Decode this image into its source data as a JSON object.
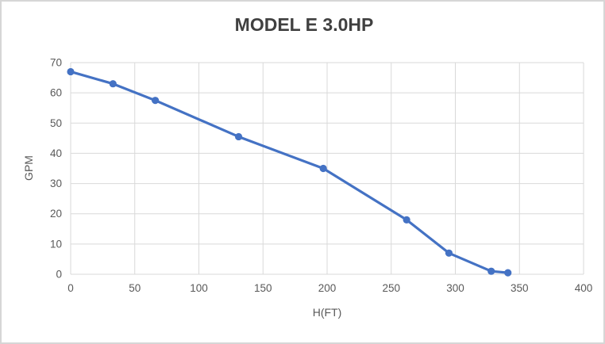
{
  "chart_data": {
    "type": "line",
    "title": "MODEL E 3.0HP",
    "xlabel": "H(FT)",
    "ylabel": "GPM",
    "xlim": [
      0,
      400
    ],
    "ylim": [
      0,
      70
    ],
    "xticks": [
      0,
      50,
      100,
      150,
      200,
      250,
      300,
      350,
      400
    ],
    "yticks": [
      0,
      10,
      20,
      30,
      40,
      50,
      60,
      70
    ],
    "grid": true,
    "legend_position": "none",
    "series": [
      {
        "name": "GPM vs H(FT)",
        "marker": "circle",
        "x": [
          0,
          33,
          66,
          131,
          197,
          262,
          295,
          328,
          341
        ],
        "y": [
          67,
          63,
          57.5,
          45.5,
          35,
          18,
          7,
          1,
          0.5
        ]
      }
    ]
  },
  "colors": {
    "series_line": "#4472C4",
    "gridline": "#D9D9D9",
    "axis_line": "#D9D9D9",
    "tick_text": "#595959",
    "title_text": "#404040",
    "background": "#FFFFFF",
    "frame_border": "#D6D6D6"
  }
}
